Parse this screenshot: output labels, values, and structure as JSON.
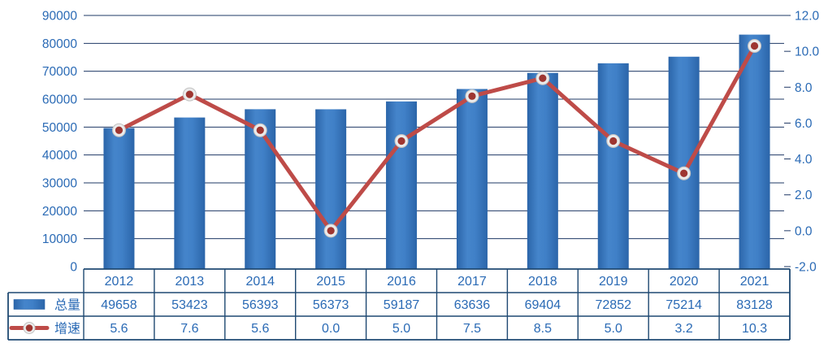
{
  "chart_data": {
    "type": "bar-line-combo",
    "title": "",
    "categories": [
      "2012",
      "2013",
      "2014",
      "2015",
      "2016",
      "2017",
      "2018",
      "2019",
      "2020",
      "2021"
    ],
    "series": [
      {
        "name": "总量",
        "type": "bar",
        "axis": "left",
        "values": [
          49658,
          53423,
          56393,
          56373,
          59187,
          63636,
          69404,
          72852,
          75214,
          83128
        ]
      },
      {
        "name": "增速",
        "type": "line",
        "axis": "right",
        "values": [
          5.6,
          7.6,
          5.6,
          0.0,
          5.0,
          7.5,
          8.5,
          5.0,
          3.2,
          10.3
        ]
      }
    ],
    "left_axis": {
      "min": 0,
      "max": 90000,
      "step": 10000,
      "labels": [
        "0",
        "10000",
        "20000",
        "30000",
        "40000",
        "50000",
        "60000",
        "70000",
        "80000",
        "90000"
      ]
    },
    "right_axis": {
      "min": -2,
      "max": 12,
      "step": 2,
      "labels": [
        "-2.0",
        "0.0",
        "2.0",
        "4.0",
        "6.0",
        "8.0",
        "10.0",
        "12.0"
      ]
    },
    "grid": true,
    "legend_position": "table-left",
    "data_table_shown": true
  },
  "colors": {
    "background": "#FFFFFF",
    "bar_mid": "#4080C7",
    "bar_edge": "#2B65A9",
    "bar_light": "#4585CB",
    "line": "#BE4B48",
    "marker_fill": "#9E3631",
    "marker_ring": "#EBEBEB",
    "marker_ring_edge": "#C2C2C2",
    "grid": "#1F3864",
    "axis_text": "#2A6AB5",
    "table_border": "#1F4972",
    "table_text": "#2A6AB5"
  }
}
